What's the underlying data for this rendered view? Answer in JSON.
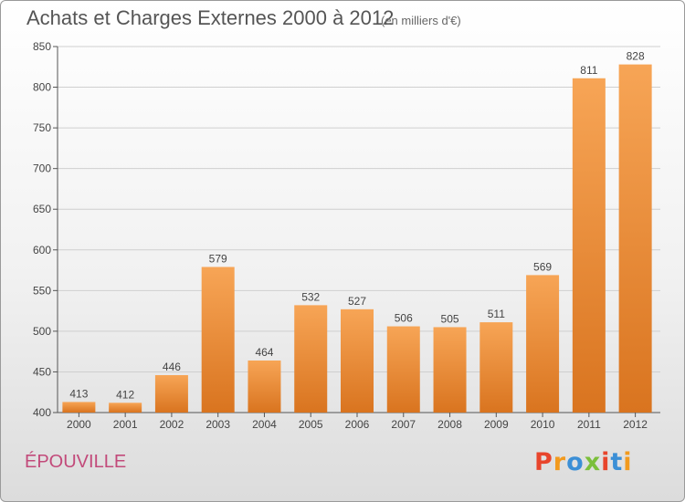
{
  "header": {
    "title": "Achats et Charges Externes 2000 à 2012",
    "subtitle": "(en milliers d'€)"
  },
  "footer": {
    "commune": "ÉPOUVILLE",
    "logo_text": "Proxiti",
    "logo_colors": [
      "#e8452c",
      "#f29a1e",
      "#3b8fd6",
      "#7bbf3a",
      "#e8452c",
      "#3b8fd6",
      "#f29a1e"
    ]
  },
  "chart_data": {
    "type": "bar",
    "title": "Achats et Charges Externes 2000 à 2012",
    "subtitle": "(en milliers d'€)",
    "xlabel": "",
    "ylabel": "",
    "categories": [
      "2000",
      "2001",
      "2002",
      "2003",
      "2004",
      "2005",
      "2006",
      "2007",
      "2008",
      "2009",
      "2010",
      "2011",
      "2012"
    ],
    "values": [
      413,
      412,
      446,
      579,
      464,
      532,
      527,
      506,
      505,
      511,
      569,
      811,
      828
    ],
    "ylim": [
      400,
      850
    ],
    "yticks": [
      400,
      450,
      500,
      550,
      600,
      650,
      700,
      750,
      800,
      850
    ],
    "grid": true,
    "legend": "none",
    "bar_color_top": "#f7a556",
    "bar_color_bottom": "#d9741f"
  }
}
